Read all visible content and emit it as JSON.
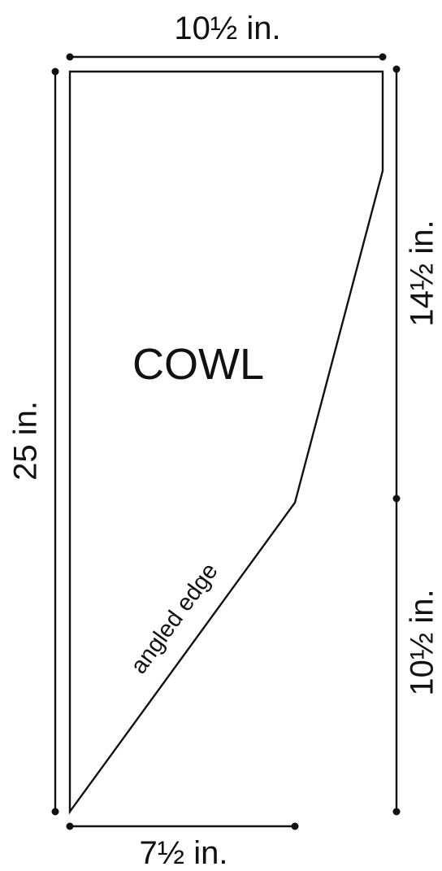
{
  "diagram": {
    "title": "COWL",
    "edge_note": "angled edge",
    "dimensions": {
      "top_width": "10½ in.",
      "left_height": "25 in.",
      "right_upper": "14½ in.",
      "right_lower": "10½ in.",
      "bottom_width": "7½ in."
    },
    "colors": {
      "line": "#111111",
      "background": "#ffffff"
    }
  }
}
